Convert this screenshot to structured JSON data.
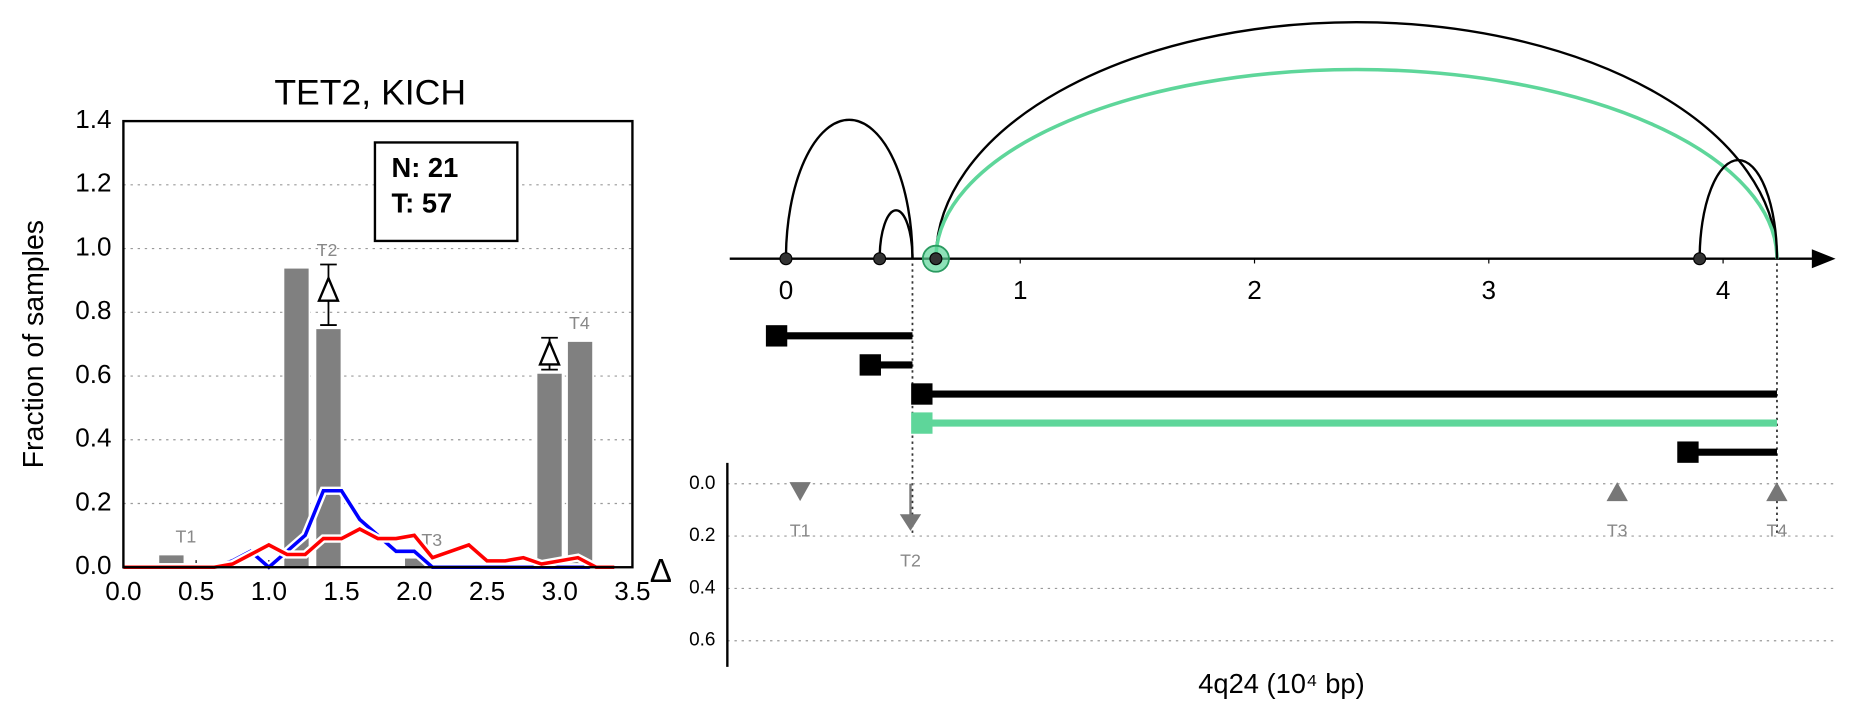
{
  "chart_data": [
    {
      "type": "bar",
      "title": "TET2, KICH",
      "ylabel": "Fraction of samples",
      "xlim": [
        0,
        3.5
      ],
      "xticks": [
        {
          "value": 0,
          "label": "0.0"
        },
        0.5,
        {
          "value": 1,
          "label": "1.0"
        },
        1.5,
        {
          "value": 2,
          "label": "2.0"
        },
        2.5,
        {
          "value": 3,
          "label": "3.0"
        },
        3.5
      ],
      "ylim": [
        0,
        1.4
      ],
      "yticks": [
        {
          "value": 0,
          "label": "0.0"
        },
        0.2,
        0.4,
        0.6,
        0.8,
        {
          "value": 1,
          "label": "1.0"
        },
        1.2,
        1.4
      ],
      "grid": true,
      "color": "#808080",
      "groups": [
        {
          "label": "T1",
          "x": [
            0.33
          ],
          "values": [
            0.04
          ]
        },
        {
          "label": "T2",
          "x": [
            1.19,
            1.41
          ],
          "values": [
            0.94,
            0.75
          ]
        },
        {
          "label": "T3",
          "x": [
            2.02
          ],
          "values": [
            0.03
          ]
        },
        {
          "label": "T4",
          "x": [
            2.93,
            3.14
          ],
          "values": [
            0.61,
            0.71
          ]
        }
      ],
      "x": [
        0,
        0.125,
        0.25,
        0.375,
        0.5,
        0.625,
        0.75,
        0.875,
        1.0,
        1.125,
        1.25,
        1.375,
        1.5,
        1.625,
        1.75,
        1.875,
        2.0,
        2.125,
        2.25,
        2.375,
        2.5,
        2.625,
        2.75,
        2.875,
        3.0,
        3.125,
        3.25,
        3.375
      ],
      "series": [
        {
          "color": "#0000ff",
          "values": [
            0,
            0,
            0,
            0,
            0,
            0,
            0.02,
            0.05,
            0,
            0.05,
            0.1,
            0.24,
            0.24,
            0.15,
            0.1,
            0.05,
            0.05,
            0,
            0,
            0,
            0,
            0,
            0,
            0,
            0,
            0,
            0,
            0
          ]
        },
        {
          "color": "#ff0000",
          "values": [
            0,
            0,
            0,
            0,
            0,
            0,
            0.01,
            0.04,
            0.07,
            0.04,
            0.04,
            0.09,
            0.09,
            0.12,
            0.09,
            0.09,
            0.1,
            0.03,
            0.05,
            0.07,
            0.02,
            0.02,
            0.03,
            0.01,
            0.02,
            0.03,
            0,
            0
          ]
        }
      ],
      "deltas": [
        {
          "x": 1.41,
          "value": 0.87,
          "low": 0.76,
          "high": 0.95
        },
        {
          "x": 2.93,
          "value": 0.67,
          "low": 0.62,
          "high": 0.72
        }
      ],
      "annotations": [
        "N: 21",
        "T: 57"
      ]
    },
    {
      "type": "arc",
      "xlabel": "4q24 (10⁴ bp)",
      "xlim": [
        -0.24,
        4.47
      ],
      "xticks": [
        0,
        1,
        2,
        3,
        4
      ],
      "nodes": [
        0,
        0.4,
        0.64,
        3.9
      ],
      "highlight_node": 2,
      "highlight_color": "#5ed69a",
      "arcs": [
        {
          "start": 0,
          "end": 0.54,
          "color": "#000000"
        },
        {
          "start": 0.4,
          "end": 0.54,
          "color": "#000000"
        },
        {
          "start": 0.64,
          "end": 4.23,
          "color": "#000000"
        },
        {
          "start": 0.64,
          "end": 4.23,
          "color": "#5ed69a"
        },
        {
          "start": 3.9,
          "end": 4.23,
          "color": "#000000"
        }
      ],
      "segments": [
        {
          "start": -0.04,
          "end": 0.54,
          "color": "#000000"
        },
        {
          "start": 0.36,
          "end": 0.54,
          "color": "#000000"
        },
        {
          "start": 0.58,
          "end": 4.23,
          "color": "#000000"
        },
        {
          "start": 0.58,
          "end": 4.23,
          "color": "#5ed69a"
        },
        {
          "start": 3.85,
          "end": 4.23,
          "color": "#000000"
        }
      ],
      "guides": [
        0.54,
        4.23
      ]
    },
    {
      "type": "scatter",
      "ylabel": "Δ",
      "xlim": [
        -0.24,
        4.47
      ],
      "ylim": [
        0.7,
        -0.08
      ],
      "yticks": [
        {
          "value": 0,
          "label": "0.0"
        },
        0.2,
        0.4,
        0.6
      ],
      "grid": true,
      "categories": [
        "T1",
        "T2",
        "T3",
        "T4"
      ],
      "x": [
        0.07,
        0.54,
        3.55,
        4.23
      ],
      "values": [
        0.03,
        0.18,
        0.03,
        0.03
      ],
      "markers": [
        "down",
        "arrow-down",
        "up",
        "up"
      ],
      "color": "#777777"
    }
  ]
}
